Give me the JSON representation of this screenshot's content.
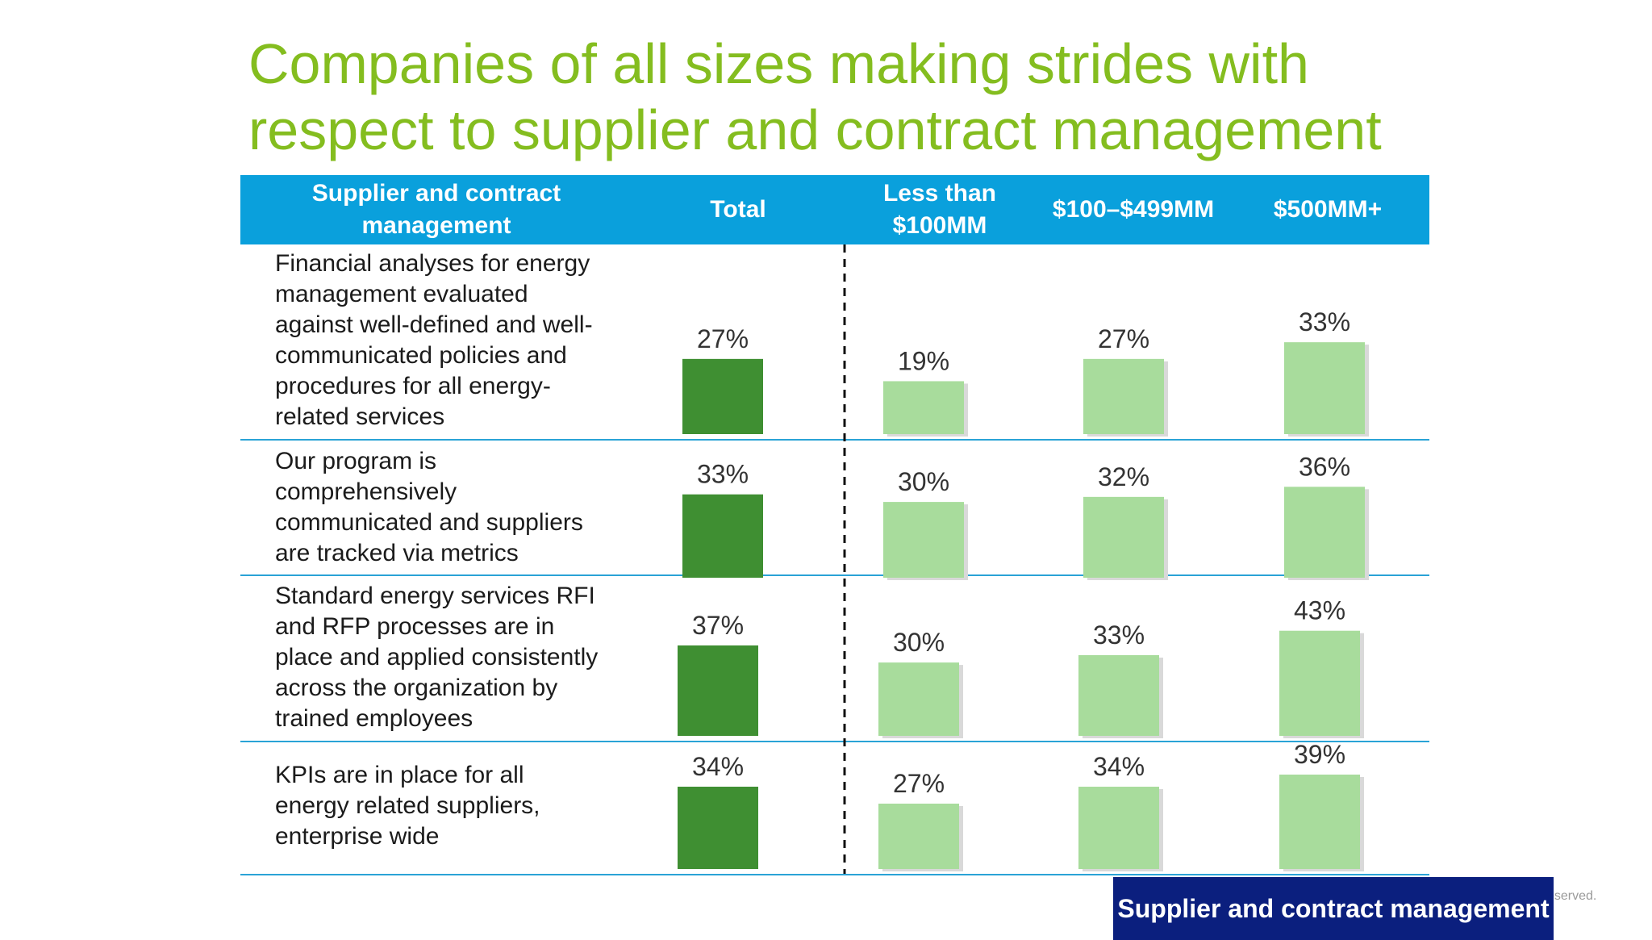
{
  "title_lines": [
    "Companies of all sizes making strides with",
    "respect to supplier and contract management"
  ],
  "colors": {
    "title": "#84bd1f",
    "header_bg": "#0aa0dc",
    "total_bar": "#3f8f32",
    "segment_bar": "#a8dc9c",
    "row_divider": "#2aa3d6",
    "footer_bg": "#0b1f7e"
  },
  "footer": {
    "label": "Supplier and contract management",
    "note": "eserved."
  },
  "chart_data": {
    "type": "bar",
    "columns": [
      "Total",
      "Less than $100MM",
      "$100–$499MM",
      "$500MM+"
    ],
    "column_headers": [
      [
        "Supplier and contract",
        "management"
      ],
      [
        "Total"
      ],
      [
        "Less than",
        "$100MM"
      ],
      [
        "$100–$499MM"
      ],
      [
        "$500MM+"
      ]
    ],
    "unit": "%",
    "rows": [
      {
        "label": [
          "Financial analyses for energy",
          "management evaluated",
          "against well-defined and well-",
          "communicated policies and",
          "procedures for all energy-",
          "related services"
        ],
        "values": [
          27,
          19,
          27,
          33
        ]
      },
      {
        "label": [
          "Our program is",
          "comprehensively",
          "communicated and suppliers",
          "are tracked via metrics"
        ],
        "values": [
          33,
          30,
          32,
          36
        ]
      },
      {
        "label": [
          "Standard energy services RFI",
          "and RFP processes are in",
          "place and applied consistently",
          "across the organization by",
          "trained employees"
        ],
        "values": [
          37,
          30,
          33,
          43
        ]
      },
      {
        "label": [
          "KPIs are in place for all",
          "energy related suppliers,",
          "enterprise wide"
        ],
        "values": [
          34,
          27,
          34,
          39
        ]
      }
    ]
  }
}
